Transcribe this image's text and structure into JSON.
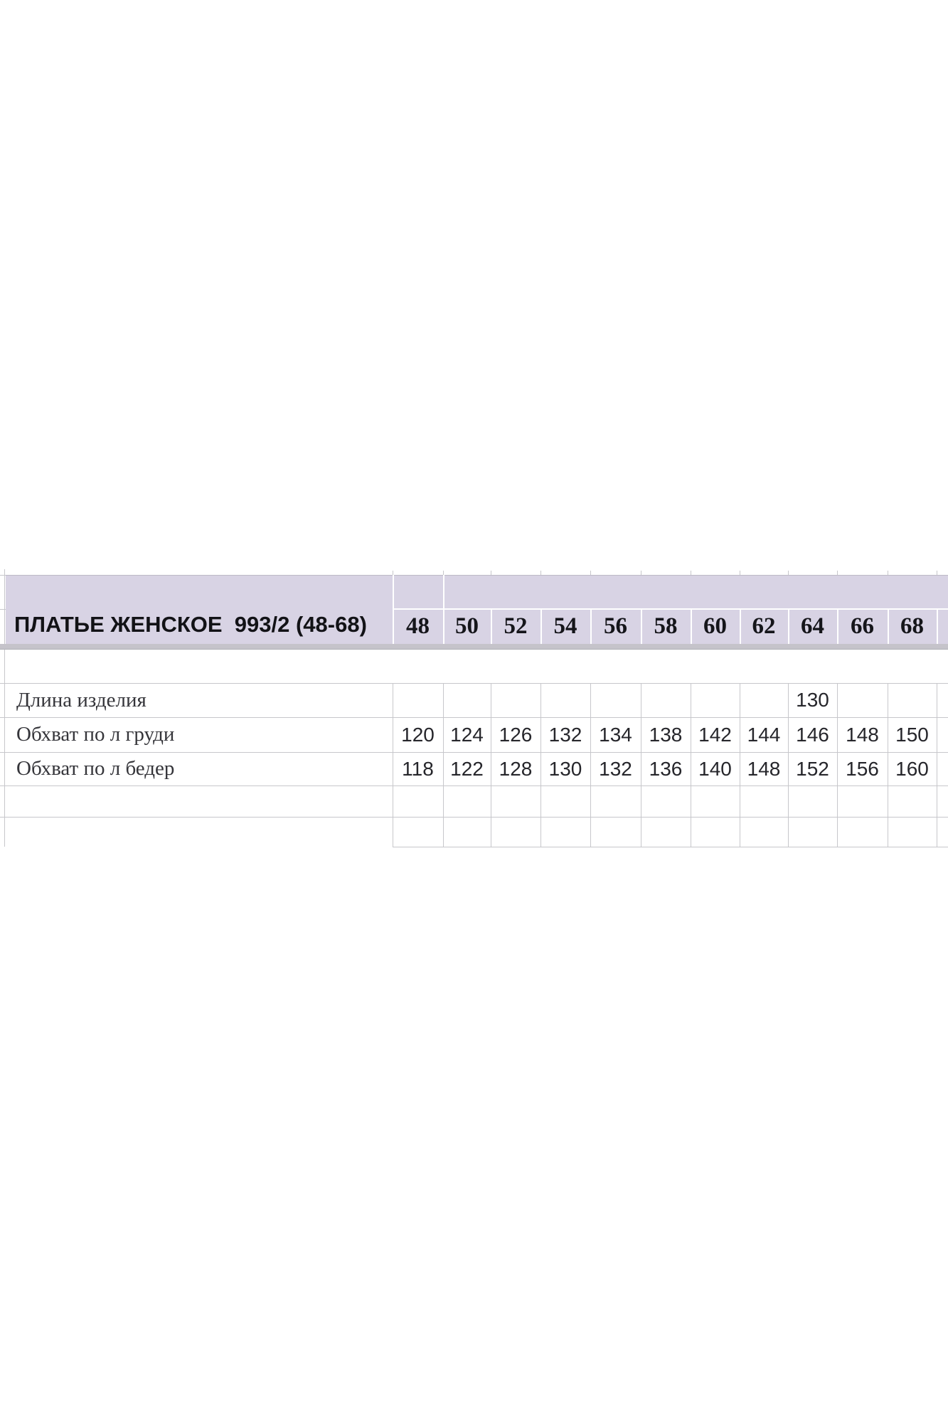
{
  "table": {
    "title": "ПЛАТЬЕ ЖЕНСКОЕ  993/2 (48-68)",
    "sizes": [
      "48",
      "50",
      "52",
      "54",
      "56",
      "58",
      "60",
      "62",
      "64",
      "66",
      "68"
    ],
    "rows": [
      {
        "label": "Длина изделия",
        "values": [
          "",
          "",
          "",
          "",
          "",
          "",
          "",
          "",
          "130",
          "",
          ""
        ]
      },
      {
        "label": "Обхват по л груди",
        "values": [
          "120",
          "124",
          "126",
          "132",
          "134",
          "138",
          "142",
          "144",
          "146",
          "148",
          "150"
        ]
      },
      {
        "label": "Обхват по л бедер",
        "values": [
          "118",
          "122",
          "128",
          "130",
          "132",
          "136",
          "140",
          "148",
          "152",
          "156",
          "160"
        ]
      }
    ],
    "colors": {
      "header_bg": "#d8d3e4",
      "header_border": "#bdb9c6",
      "separator_band": "#c5c3ca",
      "separator_band_edge": "#aeaeb4",
      "grid_line": "#c7c7cb",
      "text": "#15151a"
    }
  }
}
